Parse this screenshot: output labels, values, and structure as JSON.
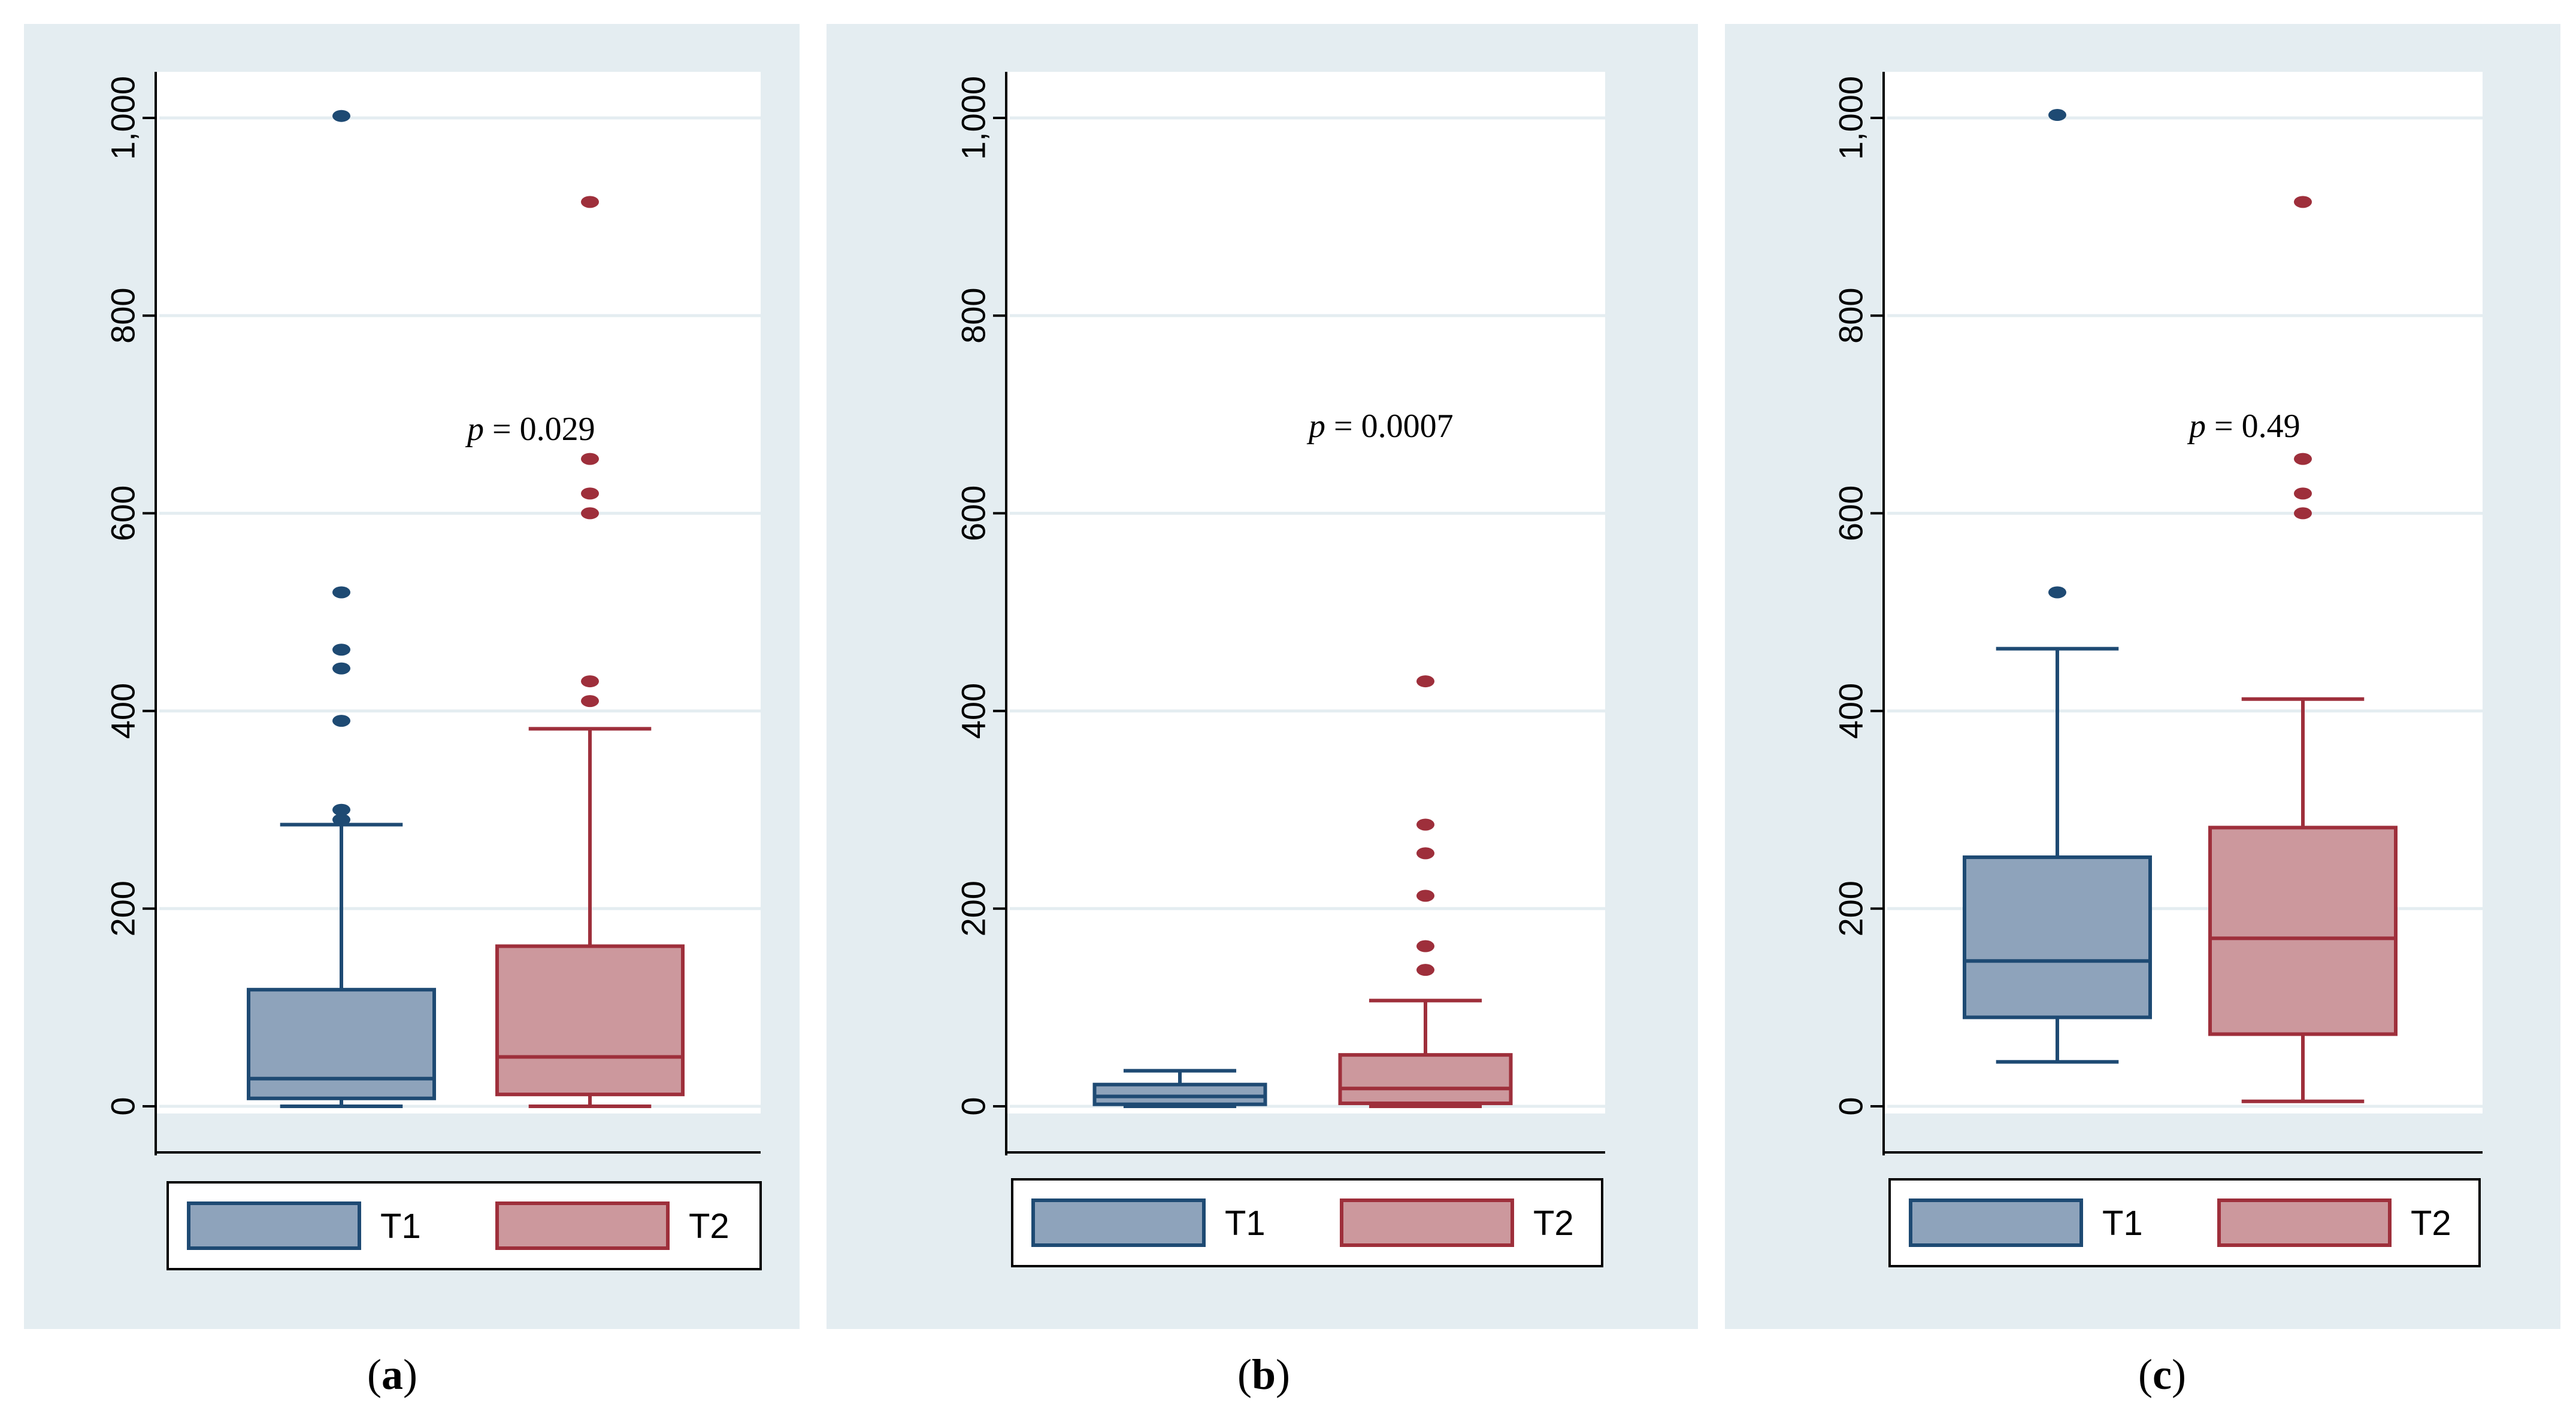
{
  "colors": {
    "t1_fill": "#8ea3bb",
    "t1_line": "#1e4a73",
    "t2_fill": "#cc989d",
    "t2_line": "#9e2f3b",
    "grid": "#e4edf1",
    "panel_bg": "#e4edf1"
  },
  "captions": [
    {
      "open": "(",
      "letter": "a",
      "close": ")"
    },
    {
      "open": "(",
      "letter": "b",
      "close": ")"
    },
    {
      "open": "(",
      "letter": "c",
      "close": ")"
    }
  ],
  "chart_data": [
    {
      "type": "box",
      "panel": "a",
      "annotation": {
        "prefix": "p",
        "text": " = 0.029"
      },
      "ylim": [
        0,
        1000
      ],
      "yticks": [
        0,
        200,
        400,
        600,
        800,
        1000
      ],
      "ytick_labels": [
        "0",
        "200",
        "400",
        "600",
        "800",
        "1,000"
      ],
      "legend": [
        "T1",
        "T2"
      ],
      "series": [
        {
          "name": "T1",
          "whisker_low": 0,
          "q1": 8,
          "median": 28,
          "q3": 118,
          "whisker_high": 285,
          "outliers": [
            290,
            300,
            390,
            443,
            462,
            520,
            1002
          ]
        },
        {
          "name": "T2",
          "whisker_low": 0,
          "q1": 12,
          "median": 50,
          "q3": 162,
          "whisker_high": 382,
          "outliers": [
            410,
            430,
            600,
            620,
            655,
            915
          ]
        }
      ]
    },
    {
      "type": "box",
      "panel": "b",
      "annotation": {
        "prefix": "p",
        "text": " = 0.0007"
      },
      "ylim": [
        0,
        1000
      ],
      "yticks": [
        0,
        200,
        400,
        600,
        800,
        1000
      ],
      "ytick_labels": [
        "0",
        "200",
        "400",
        "600",
        "800",
        "1,000"
      ],
      "legend": [
        "T1",
        "T2"
      ],
      "series": [
        {
          "name": "T1",
          "whisker_low": 0,
          "q1": 2,
          "median": 10,
          "q3": 22,
          "whisker_high": 36,
          "outliers": []
        },
        {
          "name": "T2",
          "whisker_low": 0,
          "q1": 3,
          "median": 18,
          "q3": 52,
          "whisker_high": 107,
          "outliers": [
            138,
            162,
            213,
            256,
            285,
            430
          ]
        }
      ]
    },
    {
      "type": "box",
      "panel": "c",
      "annotation": {
        "prefix": "p",
        "text": " = 0.49"
      },
      "ylim": [
        0,
        1000
      ],
      "yticks": [
        0,
        200,
        400,
        600,
        800,
        1000
      ],
      "ytick_labels": [
        "0",
        "200",
        "400",
        "600",
        "800",
        "1,000"
      ],
      "legend": [
        "T1",
        "T2"
      ],
      "series": [
        {
          "name": "T1",
          "whisker_low": 45,
          "q1": 90,
          "median": 147,
          "q3": 252,
          "whisker_high": 463,
          "outliers": [
            520,
            1003
          ]
        },
        {
          "name": "T2",
          "whisker_low": 5,
          "q1": 73,
          "median": 170,
          "q3": 282,
          "whisker_high": 412,
          "outliers": [
            600,
            620,
            655,
            915
          ]
        }
      ]
    }
  ]
}
